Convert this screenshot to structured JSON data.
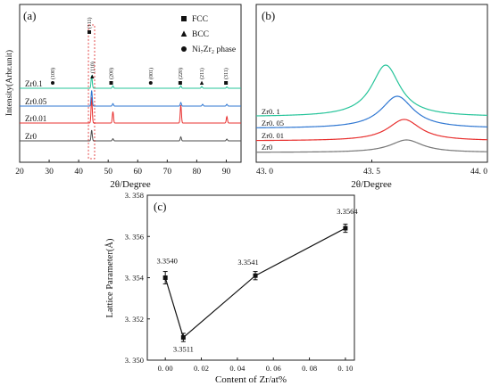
{
  "chart_data": [
    {
      "panel": "(a)",
      "type": "line",
      "xlabel": "2θ/Degree",
      "ylabel": "Intensity(Arbr.unit)",
      "xlim": [
        20,
        95
      ],
      "xticks": [
        20,
        30,
        40,
        50,
        60,
        70,
        80,
        90
      ],
      "offsets": [
        0,
        1,
        2,
        3
      ],
      "series": [
        {
          "name": "Zr0",
          "color": "#4d4d4d",
          "peaks": [
            [
              44.4,
              1.5
            ],
            [
              51.6,
              0.3
            ],
            [
              74.6,
              0.55
            ],
            [
              90.2,
              0.25
            ]
          ]
        },
        {
          "name": "Zr0.01",
          "color": "#e8302f",
          "peaks": [
            [
              44.4,
              3.6
            ],
            [
              51.6,
              1.6
            ],
            [
              74.6,
              2.5
            ],
            [
              90.2,
              0.9
            ]
          ]
        },
        {
          "name": "Zr0.05",
          "color": "#2f77d2",
          "peaks": [
            [
              44.4,
              2.2
            ],
            [
              51.6,
              0.35
            ],
            [
              74.6,
              0.5
            ],
            [
              82.0,
              0.25
            ],
            [
              90.2,
              0.25
            ]
          ]
        },
        {
          "name": "Zr0.1",
          "color": "#26c49a",
          "peaks": [
            [
              44.4,
              1.8
            ],
            [
              51.6,
              0.35
            ],
            [
              74.6,
              0.35
            ],
            [
              81.7,
              0.25
            ],
            [
              90.2,
              0.2
            ]
          ]
        }
      ],
      "legend": [
        {
          "marker": "square",
          "label": "FCC"
        },
        {
          "marker": "triangle",
          "label": "BCC"
        },
        {
          "marker": "circle",
          "label": "Ni₇Zr₂ phase"
        }
      ],
      "annotations": [
        {
          "x": 31.2,
          "label": "(100)",
          "marker": "circle"
        },
        {
          "x": 43.6,
          "label": "(111)",
          "marker": "square"
        },
        {
          "x": 44.6,
          "label": "(110)",
          "marker": "triangle"
        },
        {
          "x": 51.0,
          "label": "(200)",
          "marker": "square"
        },
        {
          "x": 64.4,
          "label": "(001)",
          "marker": "circle"
        },
        {
          "x": 74.4,
          "label": "(220)",
          "marker": "square"
        },
        {
          "x": 81.7,
          "label": "(211)",
          "marker": "triangle"
        },
        {
          "x": 89.9,
          "label": "(311)",
          "marker": "square"
        }
      ]
    },
    {
      "panel": "(b)",
      "type": "line",
      "xlabel": "2θ/Degree",
      "xlim": [
        43.0,
        44.0
      ],
      "xtick_labels": [
        "43. 0",
        "43. 5",
        "44. 0"
      ],
      "xticks": [
        43.0,
        43.5,
        44.0
      ],
      "offsets": [
        0,
        1,
        2,
        3
      ],
      "series": [
        {
          "name": "Zr0",
          "label": "Zr0",
          "color": "#777777",
          "center": 43.65,
          "height": 0.7,
          "width": 0.085
        },
        {
          "name": "Zr0.01",
          "label": "Zr0. 01",
          "color": "#e8302f",
          "center": 43.64,
          "height": 1.2,
          "width": 0.085
        },
        {
          "name": "Zr0.05",
          "label": "Zr0. 05",
          "color": "#2f77d2",
          "center": 43.61,
          "height": 1.8,
          "width": 0.085
        },
        {
          "name": "Zr0.1",
          "label": "Zr0. 1",
          "color": "#26c49a",
          "center": 43.56,
          "height": 2.9,
          "width": 0.075
        }
      ]
    },
    {
      "panel": "(c)",
      "type": "line",
      "xlabel": "Content of Zr/at%",
      "ylabel": "Lattice Parameter(Å)",
      "xlim": [
        -0.01,
        0.105
      ],
      "ylim": [
        3.35,
        3.358
      ],
      "xticks": [
        0.0,
        0.02,
        0.04,
        0.06,
        0.08,
        0.1
      ],
      "xtick_labels": [
        "0. 00",
        "0. 02",
        "0. 04",
        "0. 06",
        "0. 08",
        "0. 10"
      ],
      "yticks": [
        3.35,
        3.352,
        3.354,
        3.356,
        3.358
      ],
      "ytick_labels": [
        "3. 350",
        "3. 352",
        "3. 354",
        "3. 356",
        "3. 358"
      ],
      "x": [
        0.0,
        0.01,
        0.05,
        0.1
      ],
      "y": [
        3.354,
        3.3511,
        3.3541,
        3.3564
      ],
      "err": [
        0.0003,
        0.0002,
        0.0002,
        0.0002
      ],
      "point_labels": [
        "3.3540",
        "3.3511",
        "3.3541",
        "3.3564"
      ]
    }
  ]
}
